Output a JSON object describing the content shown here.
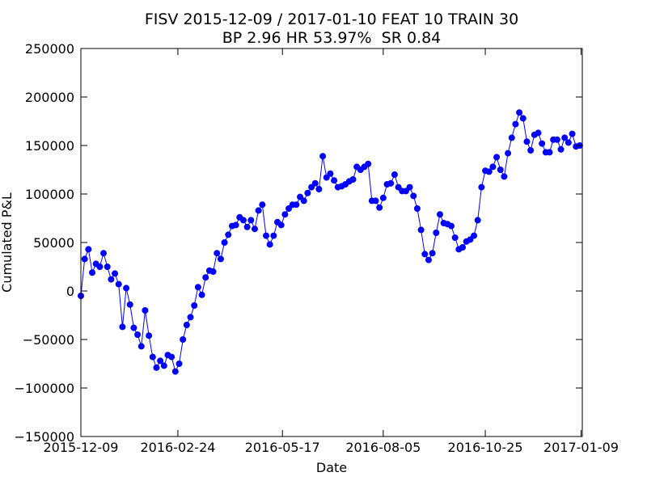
{
  "chart_data": {
    "type": "line",
    "title": "FISV 2015-12-09 / 2017-01-10 FEAT 10 TRAIN 30",
    "subtitle": "BP 2.96 HR 53.97%  SR 0.84",
    "x_label": "Date",
    "y_label": "Cumulated P&L",
    "xlim": [
      "2015-12-09",
      "2017-01-10"
    ],
    "xticks": [
      "2015-12-09",
      "2016-02-24",
      "2016-05-17",
      "2016-08-05",
      "2016-10-25",
      "2017-01-09"
    ],
    "ylim": [
      -150000,
      250000
    ],
    "yticks": [
      {
        "value": -150000,
        "label": "−150000"
      },
      {
        "value": -100000,
        "label": "−100000"
      },
      {
        "value": -50000,
        "label": "−50000"
      },
      0,
      50000,
      100000,
      150000,
      200000,
      250000
    ],
    "grid": false,
    "x": [
      "2015-12-09",
      "2015-12-12",
      "2015-12-15",
      "2015-12-18",
      "2015-12-21",
      "2015-12-24",
      "2015-12-27",
      "2015-12-30",
      "2016-01-02",
      "2016-01-05",
      "2016-01-08",
      "2016-01-11",
      "2016-01-14",
      "2016-01-17",
      "2016-01-20",
      "2016-01-23",
      "2016-01-26",
      "2016-01-29",
      "2016-02-01",
      "2016-02-04",
      "2016-02-07",
      "2016-02-10",
      "2016-02-13",
      "2016-02-16",
      "2016-02-19",
      "2016-02-22",
      "2016-02-25",
      "2016-02-28",
      "2016-03-02",
      "2016-03-05",
      "2016-03-08",
      "2016-03-11",
      "2016-03-14",
      "2016-03-17",
      "2016-03-20",
      "2016-03-23",
      "2016-03-26",
      "2016-03-29",
      "2016-04-01",
      "2016-04-04",
      "2016-04-07",
      "2016-04-10",
      "2016-04-13",
      "2016-04-16",
      "2016-04-19",
      "2016-04-22",
      "2016-04-25",
      "2016-04-28",
      "2016-05-01",
      "2016-05-04",
      "2016-05-07",
      "2016-05-10",
      "2016-05-13",
      "2016-05-16",
      "2016-05-19",
      "2016-05-22",
      "2016-05-25",
      "2016-05-28",
      "2016-05-31",
      "2016-06-03",
      "2016-06-06",
      "2016-06-09",
      "2016-06-12",
      "2016-06-15",
      "2016-06-18",
      "2016-06-21",
      "2016-06-24",
      "2016-06-27",
      "2016-06-30",
      "2016-07-03",
      "2016-07-06",
      "2016-07-09",
      "2016-07-12",
      "2016-07-15",
      "2016-07-18",
      "2016-07-21",
      "2016-07-24",
      "2016-07-27",
      "2016-07-30",
      "2016-08-02",
      "2016-08-05",
      "2016-08-08",
      "2016-08-11",
      "2016-08-14",
      "2016-08-17",
      "2016-08-20",
      "2016-08-23",
      "2016-08-26",
      "2016-08-29",
      "2016-09-01",
      "2016-09-04",
      "2016-09-07",
      "2016-09-10",
      "2016-09-13",
      "2016-09-16",
      "2016-09-19",
      "2016-09-22",
      "2016-09-25",
      "2016-09-28",
      "2016-10-01",
      "2016-10-04",
      "2016-10-07",
      "2016-10-10",
      "2016-10-13",
      "2016-10-16",
      "2016-10-19",
      "2016-10-22",
      "2016-10-25",
      "2016-10-28",
      "2016-10-31",
      "2016-11-03",
      "2016-11-06",
      "2016-11-09",
      "2016-11-12",
      "2016-11-15",
      "2016-11-18",
      "2016-11-21",
      "2016-11-24",
      "2016-11-27",
      "2016-11-30",
      "2016-12-03",
      "2016-12-06",
      "2016-12-09",
      "2016-12-12",
      "2016-12-15",
      "2016-12-18",
      "2016-12-21",
      "2016-12-24",
      "2016-12-27",
      "2016-12-30",
      "2017-01-02",
      "2017-01-05",
      "2017-01-08"
    ],
    "series": [
      {
        "name": "P&L",
        "color": "#0000ff",
        "values": [
          -5000,
          33000,
          43000,
          19000,
          28000,
          25000,
          39000,
          25000,
          12000,
          18000,
          7000,
          -37000,
          3000,
          -14000,
          -38000,
          -45000,
          -57000,
          -20000,
          -46000,
          -68000,
          -79000,
          -72000,
          -77000,
          -66000,
          -68000,
          -83000,
          -75000,
          -50000,
          -35000,
          -27000,
          -15000,
          4000,
          -4000,
          14000,
          21000,
          20000,
          39000,
          33000,
          50000,
          58000,
          67000,
          68000,
          76000,
          73000,
          66000,
          73000,
          64000,
          83000,
          89000,
          57000,
          48000,
          57000,
          71000,
          68000,
          79000,
          85000,
          89000,
          89000,
          97000,
          93000,
          101000,
          107000,
          111000,
          105000,
          139000,
          117000,
          121000,
          114000,
          107000,
          108000,
          110000,
          113000,
          115000,
          128000,
          125000,
          128000,
          131000,
          93000,
          93000,
          86000,
          96000,
          110000,
          111000,
          120000,
          107000,
          103000,
          103000,
          107000,
          98000,
          85000,
          63000,
          38000,
          32000,
          39000,
          60000,
          79000,
          70000,
          69000,
          67000,
          55000,
          43000,
          45000,
          51000,
          53000,
          57000,
          73000,
          107000,
          124000,
          123000,
          128000,
          138000,
          125000,
          118000,
          142000,
          158000,
          172000,
          184000,
          178000,
          154000,
          145000,
          161000,
          163000,
          152000,
          143000,
          143000,
          156000,
          156000,
          146000,
          158000,
          153000,
          162000,
          149000,
          150000
        ]
      }
    ]
  }
}
